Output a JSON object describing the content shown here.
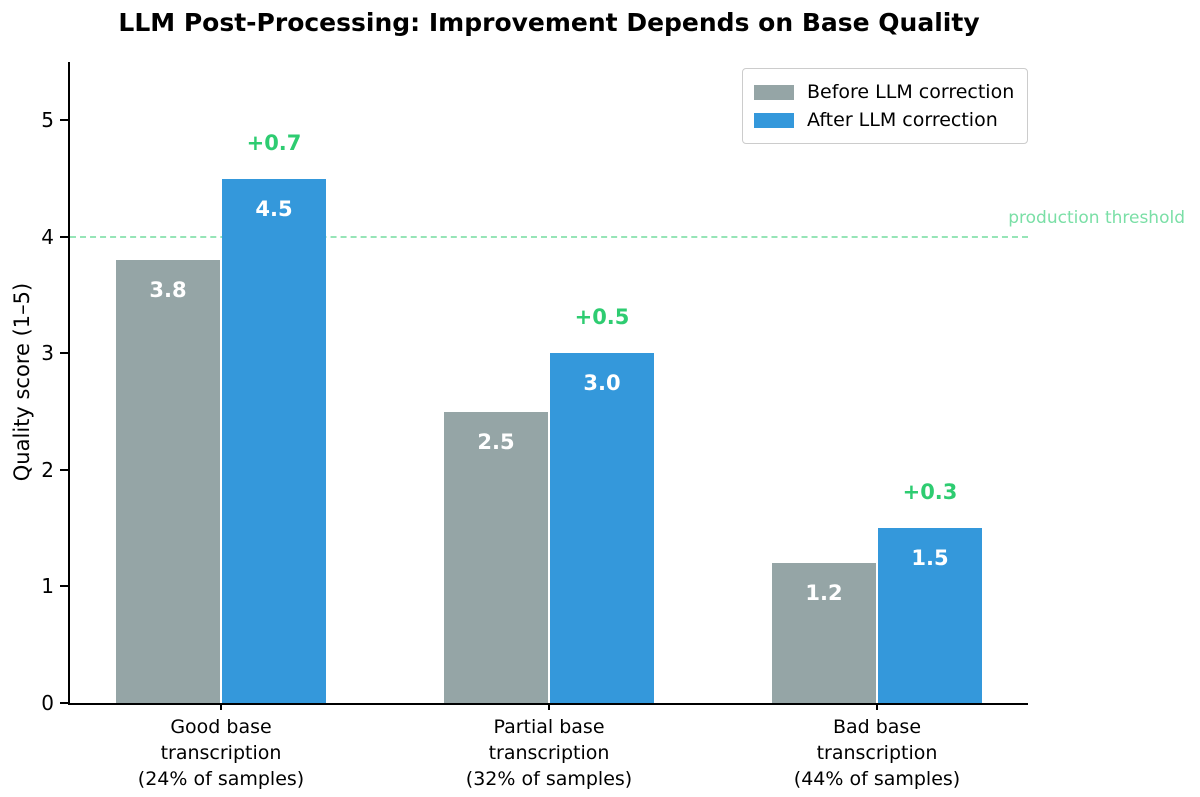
{
  "title": "LLM Post-Processing: Improvement Depends on Base Quality",
  "y_axis": {
    "label": "Quality score (1–5)",
    "ticks": [
      0,
      1,
      2,
      3,
      4,
      5
    ]
  },
  "threshold": {
    "value": 4,
    "label": "production threshold",
    "line_color": "#96e5b7",
    "text_color": "#7adfa6"
  },
  "legend": {
    "position": "upper right",
    "items": [
      {
        "label": "Before LLM correction",
        "color": "#95a5a6"
      },
      {
        "label": "After LLM correction",
        "color": "#3498db"
      }
    ]
  },
  "chart_data": {
    "type": "bar",
    "categories": [
      "Good base\ntranscription\n(24% of samples)",
      "Partial base\ntranscription\n(32% of samples)",
      "Bad base\ntranscription\n(44% of samples)"
    ],
    "series": [
      {
        "name": "Before LLM correction",
        "color": "#95a5a6",
        "values": [
          3.8,
          2.5,
          1.2
        ],
        "value_labels": [
          "3.8",
          "2.5",
          "1.2"
        ]
      },
      {
        "name": "After LLM correction",
        "color": "#3498db",
        "values": [
          4.5,
          3.0,
          1.5
        ],
        "value_labels": [
          "4.5",
          "3.0",
          "1.5"
        ]
      }
    ],
    "improvement_labels": [
      "+0.7",
      "+0.5",
      "+0.3"
    ],
    "improvement_color": "#2ecc71",
    "title": "LLM Post-Processing: Improvement Depends on Base Quality",
    "xlabel": "",
    "ylabel": "Quality score (1–5)",
    "ylim": [
      0,
      5.5
    ],
    "yticks": [
      0,
      1,
      2,
      3,
      4,
      5
    ],
    "threshold_line": {
      "y": 4,
      "label": "production threshold"
    },
    "grid": false,
    "legend_position": "upper right"
  }
}
